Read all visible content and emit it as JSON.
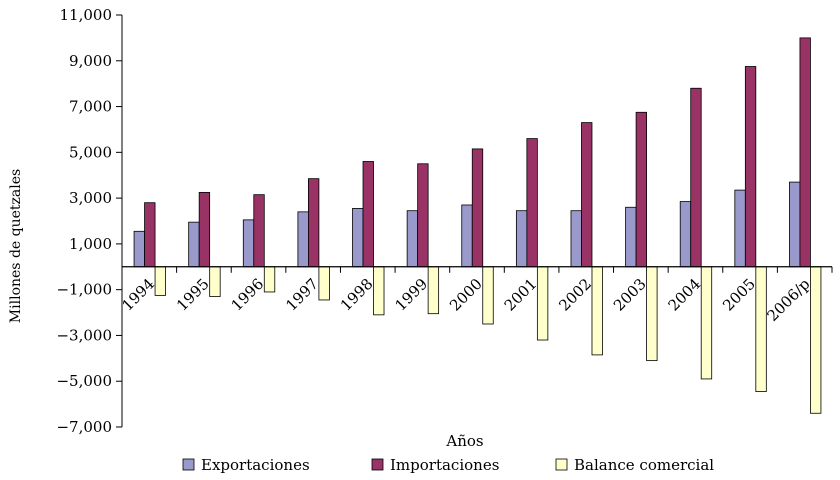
{
  "chart_data": {
    "type": "bar",
    "xlabel": "Años",
    "ylabel": "Millones de quetzales",
    "ylim": [
      -7000,
      11000
    ],
    "yticks": [
      11000,
      9000,
      7000,
      5000,
      3000,
      1000,
      -1000,
      -3000,
      -5000,
      -7000
    ],
    "ytick_labels": [
      "11,000",
      "9,000",
      "7,000",
      "5,000",
      "3,000",
      "1,000",
      "−1,000",
      "−3,000",
      "−5,000",
      "−7,000"
    ],
    "categories": [
      "1994",
      "1995",
      "1996",
      "1997",
      "1998",
      "1999",
      "2000",
      "2001",
      "2002",
      "2003",
      "2004",
      "2005",
      "2006/p"
    ],
    "series": [
      {
        "name": "Exportaciones",
        "color": "#9999cc",
        "values": [
          1550,
          1950,
          2050,
          2400,
          2550,
          2450,
          2700,
          2450,
          2450,
          2600,
          2850,
          3350,
          3700
        ]
      },
      {
        "name": "Importaciones",
        "color": "#993366",
        "values": [
          2800,
          3250,
          3150,
          3850,
          4600,
          4500,
          5150,
          5600,
          6300,
          6750,
          7800,
          8750,
          10000
        ]
      },
      {
        "name": "Balance comercial",
        "color": "#ffffcc",
        "values": [
          -1250,
          -1300,
          -1100,
          -1450,
          -2100,
          -2050,
          -2500,
          -3200,
          -3850,
          -4100,
          -4900,
          -5450,
          -6400
        ]
      }
    ],
    "legend_position": "bottom",
    "grid": false
  }
}
